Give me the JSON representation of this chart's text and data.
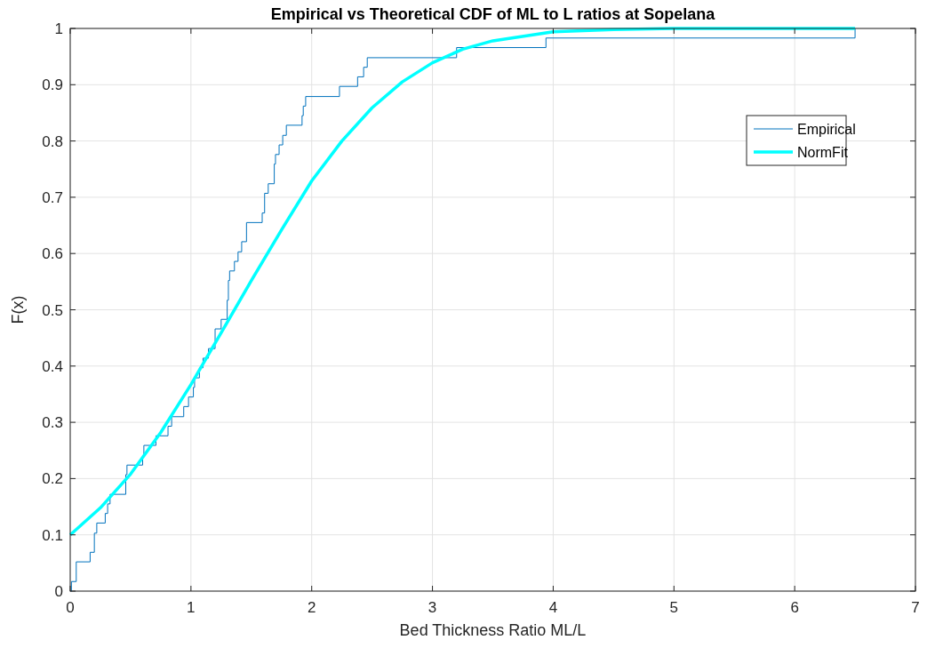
{
  "chart_data": {
    "type": "line",
    "title": "Empirical vs Theoretical CDF of ML to L ratios at Sopelana",
    "xlabel": "Bed Thickness Ratio ML/L",
    "ylabel": "F(x)",
    "xlim": [
      0,
      7
    ],
    "xticks": [
      0,
      1,
      2,
      3,
      4,
      5,
      6,
      7
    ],
    "ylim": [
      0,
      1
    ],
    "yticks": [
      0,
      0.1,
      0.2,
      0.3,
      0.4,
      0.5,
      0.6,
      0.7,
      0.8,
      0.9,
      1
    ],
    "grid": true,
    "legend": "top right",
    "series": [
      {
        "name": "Empirical",
        "type": "step",
        "color": "#0072bd",
        "x": [
          0,
          0.01,
          0.05,
          0.165,
          0.2,
          0.22,
          0.29,
          0.31,
          0.33,
          0.46,
          0.47,
          0.6,
          0.61,
          0.71,
          0.81,
          0.84,
          0.94,
          0.98,
          1.02,
          1.03,
          1.07,
          1.1,
          1.145,
          1.2,
          1.25,
          1.3,
          1.31,
          1.32,
          1.36,
          1.39,
          1.42,
          1.46,
          1.59,
          1.61,
          1.64,
          1.69,
          1.7,
          1.73,
          1.76,
          1.79,
          1.92,
          1.93,
          1.95,
          2.23,
          2.38,
          2.43,
          2.46,
          3.2,
          3.94,
          6.5
        ],
        "values": [
          0,
          0.017,
          0.052,
          0.069,
          0.103,
          0.121,
          0.138,
          0.155,
          0.172,
          0.207,
          0.224,
          0.241,
          0.259,
          0.276,
          0.293,
          0.31,
          0.328,
          0.345,
          0.362,
          0.379,
          0.397,
          0.414,
          0.431,
          0.466,
          0.483,
          0.517,
          0.552,
          0.569,
          0.586,
          0.603,
          0.621,
          0.655,
          0.672,
          0.707,
          0.724,
          0.759,
          0.776,
          0.793,
          0.81,
          0.828,
          0.845,
          0.862,
          0.879,
          0.897,
          0.914,
          0.931,
          0.948,
          0.966,
          0.983,
          1
        ]
      },
      {
        "name": "NormFit",
        "color": "#00ffff",
        "x": [
          0,
          0.25,
          0.5,
          0.75,
          1,
          1.25,
          1.5,
          1.75,
          2,
          2.25,
          2.5,
          2.75,
          3,
          3.25,
          3.5,
          4,
          4.5,
          5,
          6.5
        ],
        "values": [
          0.1,
          0.148,
          0.208,
          0.282,
          0.367,
          0.459,
          0.552,
          0.642,
          0.729,
          0.8,
          0.859,
          0.905,
          0.939,
          0.963,
          0.978,
          0.994,
          0.998,
          1,
          1
        ]
      }
    ]
  }
}
